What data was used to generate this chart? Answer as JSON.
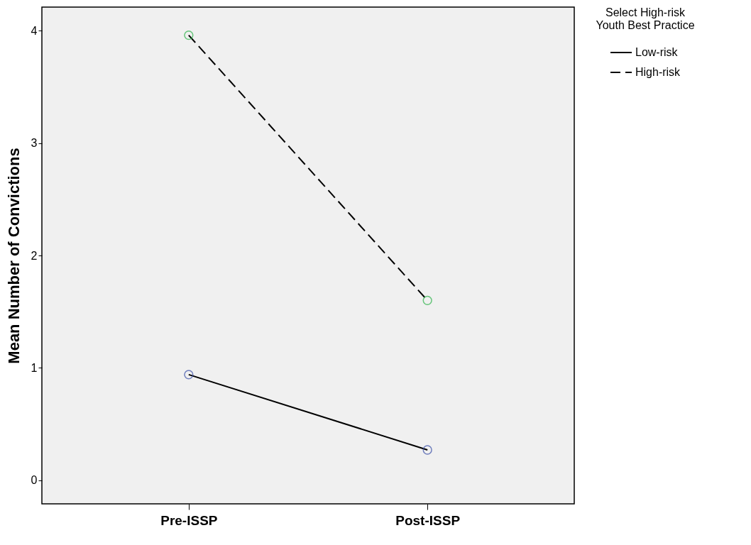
{
  "chart_data": {
    "type": "line",
    "ylabel": "Mean Number of Convictions",
    "legend_title": "Select High-risk\nYouth Best Practice",
    "legend": "top right",
    "categories": [
      "Pre-ISSP",
      "Post-ISSP"
    ],
    "ylim": [
      -0.21,
      4.21
    ],
    "yticks": [
      0,
      1,
      2,
      3,
      4
    ],
    "series": [
      {
        "name": "Low-risk",
        "color": "#000000",
        "line_style": "solid",
        "values": [
          0.94,
          0.27
        ]
      },
      {
        "name": "High-risk",
        "color": "#000000",
        "line_style": "dashed",
        "values": [
          3.96,
          1.6
        ]
      },
      {
        "type": "scatter",
        "color": "#3a4fa8",
        "marker": "circle",
        "x": [
          "Pre-ISSP",
          "Post-ISSP"
        ],
        "values": [
          0.94,
          0.27
        ]
      },
      {
        "type": "scatter",
        "color": "#2db34a",
        "marker": "circle",
        "x": [
          "Pre-ISSP",
          "Post-ISSP"
        ],
        "values": [
          3.96,
          1.6
        ]
      }
    ]
  }
}
